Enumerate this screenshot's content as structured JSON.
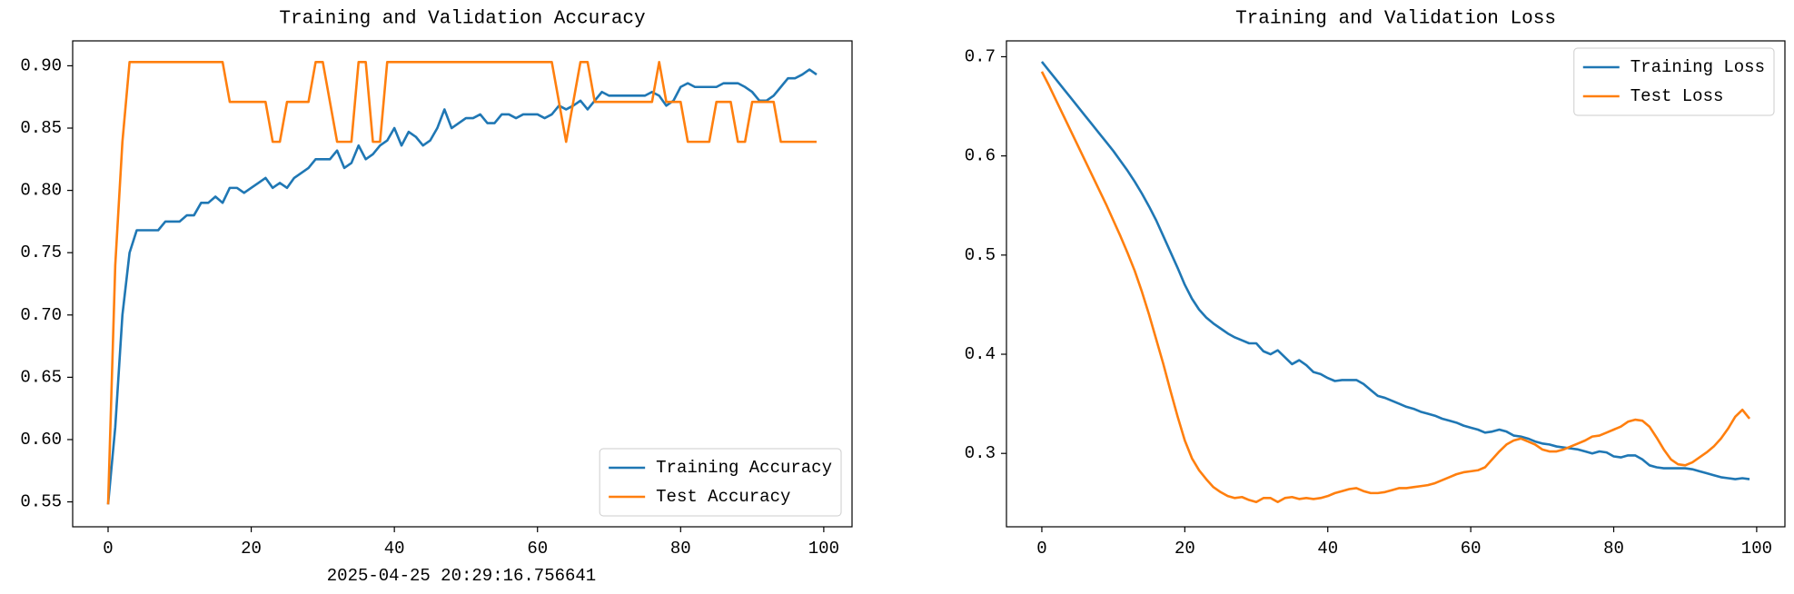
{
  "timestamp": "2025-04-25 20:29:16.756641",
  "chart_data": [
    {
      "type": "line",
      "title": "Training and Validation Accuracy",
      "x": [
        0,
        1,
        2,
        3,
        4,
        5,
        6,
        7,
        8,
        9,
        10,
        11,
        12,
        13,
        14,
        15,
        16,
        17,
        18,
        19,
        20,
        21,
        22,
        23,
        24,
        25,
        26,
        27,
        28,
        29,
        30,
        31,
        32,
        33,
        34,
        35,
        36,
        37,
        38,
        39,
        40,
        41,
        42,
        43,
        44,
        45,
        46,
        47,
        48,
        49,
        50,
        51,
        52,
        53,
        54,
        55,
        56,
        57,
        58,
        59,
        60,
        61,
        62,
        63,
        64,
        65,
        66,
        67,
        68,
        69,
        70,
        71,
        72,
        73,
        74,
        75,
        76,
        77,
        78,
        79,
        80,
        81,
        82,
        83,
        84,
        85,
        86,
        87,
        88,
        89,
        90,
        91,
        92,
        93,
        94,
        95,
        96,
        97,
        98,
        99
      ],
      "series": [
        {
          "name": "Training Accuracy",
          "color": "#1f77b4",
          "values": [
            0.548,
            0.61,
            0.7,
            0.75,
            0.768,
            0.768,
            0.768,
            0.768,
            0.775,
            0.775,
            0.775,
            0.78,
            0.78,
            0.79,
            0.79,
            0.795,
            0.79,
            0.802,
            0.802,
            0.798,
            0.802,
            0.806,
            0.81,
            0.802,
            0.806,
            0.802,
            0.81,
            0.814,
            0.818,
            0.825,
            0.825,
            0.825,
            0.832,
            0.818,
            0.822,
            0.836,
            0.825,
            0.829,
            0.836,
            0.84,
            0.85,
            0.836,
            0.847,
            0.843,
            0.836,
            0.84,
            0.85,
            0.865,
            0.85,
            0.854,
            0.858,
            0.858,
            0.861,
            0.854,
            0.854,
            0.861,
            0.861,
            0.858,
            0.861,
            0.861,
            0.861,
            0.858,
            0.861,
            0.868,
            0.865,
            0.868,
            0.872,
            0.865,
            0.872,
            0.879,
            0.876,
            0.876,
            0.876,
            0.876,
            0.876,
            0.876,
            0.879,
            0.876,
            0.868,
            0.872,
            0.883,
            0.886,
            0.883,
            0.883,
            0.883,
            0.883,
            0.886,
            0.886,
            0.886,
            0.883,
            0.879,
            0.872,
            0.872,
            0.876,
            0.883,
            0.89,
            0.89,
            0.893,
            0.897,
            0.893
          ]
        },
        {
          "name": "Test Accuracy",
          "color": "#ff7f0e",
          "values": [
            0.548,
            0.74,
            0.839,
            0.903,
            0.903,
            0.903,
            0.903,
            0.903,
            0.903,
            0.903,
            0.903,
            0.903,
            0.903,
            0.903,
            0.903,
            0.903,
            0.903,
            0.871,
            0.871,
            0.871,
            0.871,
            0.871,
            0.871,
            0.839,
            0.839,
            0.871,
            0.871,
            0.871,
            0.871,
            0.903,
            0.903,
            0.871,
            0.839,
            0.839,
            0.839,
            0.903,
            0.903,
            0.839,
            0.839,
            0.903,
            0.903,
            0.903,
            0.903,
            0.903,
            0.903,
            0.903,
            0.903,
            0.903,
            0.903,
            0.903,
            0.903,
            0.903,
            0.903,
            0.903,
            0.903,
            0.903,
            0.903,
            0.903,
            0.903,
            0.903,
            0.903,
            0.903,
            0.903,
            0.871,
            0.839,
            0.871,
            0.903,
            0.903,
            0.871,
            0.871,
            0.871,
            0.871,
            0.871,
            0.871,
            0.871,
            0.871,
            0.871,
            0.903,
            0.871,
            0.871,
            0.871,
            0.839,
            0.839,
            0.839,
            0.839,
            0.871,
            0.871,
            0.871,
            0.839,
            0.839,
            0.871,
            0.871,
            0.871,
            0.871,
            0.839,
            0.839,
            0.839,
            0.839,
            0.839,
            0.839
          ]
        }
      ],
      "xlim": [
        -4.95,
        103.95
      ],
      "xticks": [
        0,
        20,
        40,
        60,
        80,
        100
      ],
      "ylim": [
        0.53,
        0.92
      ],
      "yticks": [
        0.55,
        {
          "value": 0.6,
          "label": "0.60"
        },
        0.65,
        {
          "value": 0.7,
          "label": "0.70"
        },
        0.75,
        {
          "value": 0.8,
          "label": "0.80"
        },
        0.85,
        {
          "value": 0.9,
          "label": "0.90"
        }
      ],
      "legend": "lower right",
      "grid": false
    },
    {
      "type": "line",
      "title": "Training and Validation Loss",
      "x": [
        0,
        1,
        2,
        3,
        4,
        5,
        6,
        7,
        8,
        9,
        10,
        11,
        12,
        13,
        14,
        15,
        16,
        17,
        18,
        19,
        20,
        21,
        22,
        23,
        24,
        25,
        26,
        27,
        28,
        29,
        30,
        31,
        32,
        33,
        34,
        35,
        36,
        37,
        38,
        39,
        40,
        41,
        42,
        43,
        44,
        45,
        46,
        47,
        48,
        49,
        50,
        51,
        52,
        53,
        54,
        55,
        56,
        57,
        58,
        59,
        60,
        61,
        62,
        63,
        64,
        65,
        66,
        67,
        68,
        69,
        70,
        71,
        72,
        73,
        74,
        75,
        76,
        77,
        78,
        79,
        80,
        81,
        82,
        83,
        84,
        85,
        86,
        87,
        88,
        89,
        90,
        91,
        92,
        93,
        94,
        95,
        96,
        97,
        98,
        99
      ],
      "series": [
        {
          "name": "Training Loss",
          "color": "#1f77b4",
          "values": [
            0.695,
            0.686,
            0.677,
            0.668,
            0.659,
            0.65,
            0.641,
            0.632,
            0.623,
            0.614,
            0.605,
            0.595,
            0.585,
            0.574,
            0.562,
            0.549,
            0.535,
            0.519,
            0.503,
            0.487,
            0.47,
            0.456,
            0.445,
            0.437,
            0.431,
            0.426,
            0.421,
            0.417,
            0.414,
            0.411,
            0.411,
            0.403,
            0.4,
            0.404,
            0.397,
            0.39,
            0.394,
            0.389,
            0.382,
            0.38,
            0.376,
            0.373,
            0.374,
            0.374,
            0.374,
            0.37,
            0.364,
            0.358,
            0.356,
            0.353,
            0.35,
            0.347,
            0.345,
            0.342,
            0.34,
            0.338,
            0.335,
            0.333,
            0.331,
            0.328,
            0.326,
            0.324,
            0.321,
            0.322,
            0.324,
            0.322,
            0.318,
            0.317,
            0.315,
            0.312,
            0.31,
            0.309,
            0.307,
            0.306,
            0.305,
            0.304,
            0.302,
            0.3,
            0.302,
            0.301,
            0.297,
            0.296,
            0.298,
            0.298,
            0.294,
            0.288,
            0.286,
            0.285,
            0.285,
            0.285,
            0.285,
            0.284,
            0.282,
            0.28,
            0.278,
            0.276,
            0.275,
            0.274,
            0.275,
            0.274
          ]
        },
        {
          "name": "Test Loss",
          "color": "#ff7f0e",
          "values": [
            0.685,
            0.671,
            0.656,
            0.641,
            0.626,
            0.611,
            0.596,
            0.581,
            0.566,
            0.551,
            0.535,
            0.519,
            0.502,
            0.484,
            0.463,
            0.44,
            0.415,
            0.39,
            0.363,
            0.337,
            0.313,
            0.295,
            0.283,
            0.274,
            0.266,
            0.261,
            0.257,
            0.255,
            0.256,
            0.253,
            0.251,
            0.255,
            0.255,
            0.251,
            0.255,
            0.256,
            0.254,
            0.255,
            0.254,
            0.255,
            0.257,
            0.26,
            0.262,
            0.264,
            0.265,
            0.262,
            0.26,
            0.26,
            0.261,
            0.263,
            0.265,
            0.265,
            0.266,
            0.267,
            0.268,
            0.27,
            0.273,
            0.276,
            0.279,
            0.281,
            0.282,
            0.283,
            0.286,
            0.294,
            0.302,
            0.309,
            0.313,
            0.315,
            0.312,
            0.309,
            0.304,
            0.302,
            0.302,
            0.304,
            0.307,
            0.31,
            0.313,
            0.317,
            0.318,
            0.321,
            0.324,
            0.327,
            0.332,
            0.334,
            0.333,
            0.327,
            0.316,
            0.304,
            0.294,
            0.289,
            0.288,
            0.291,
            0.296,
            0.301,
            0.307,
            0.315,
            0.325,
            0.337,
            0.344,
            0.335
          ]
        }
      ],
      "xlim": [
        -4.95,
        103.95
      ],
      "xticks": [
        0,
        20,
        40,
        60,
        80,
        100
      ],
      "ylim": [
        0.226,
        0.716
      ],
      "yticks": [
        0.3,
        0.4,
        0.5,
        0.6,
        0.7
      ],
      "legend": "upper right",
      "grid": false
    }
  ]
}
